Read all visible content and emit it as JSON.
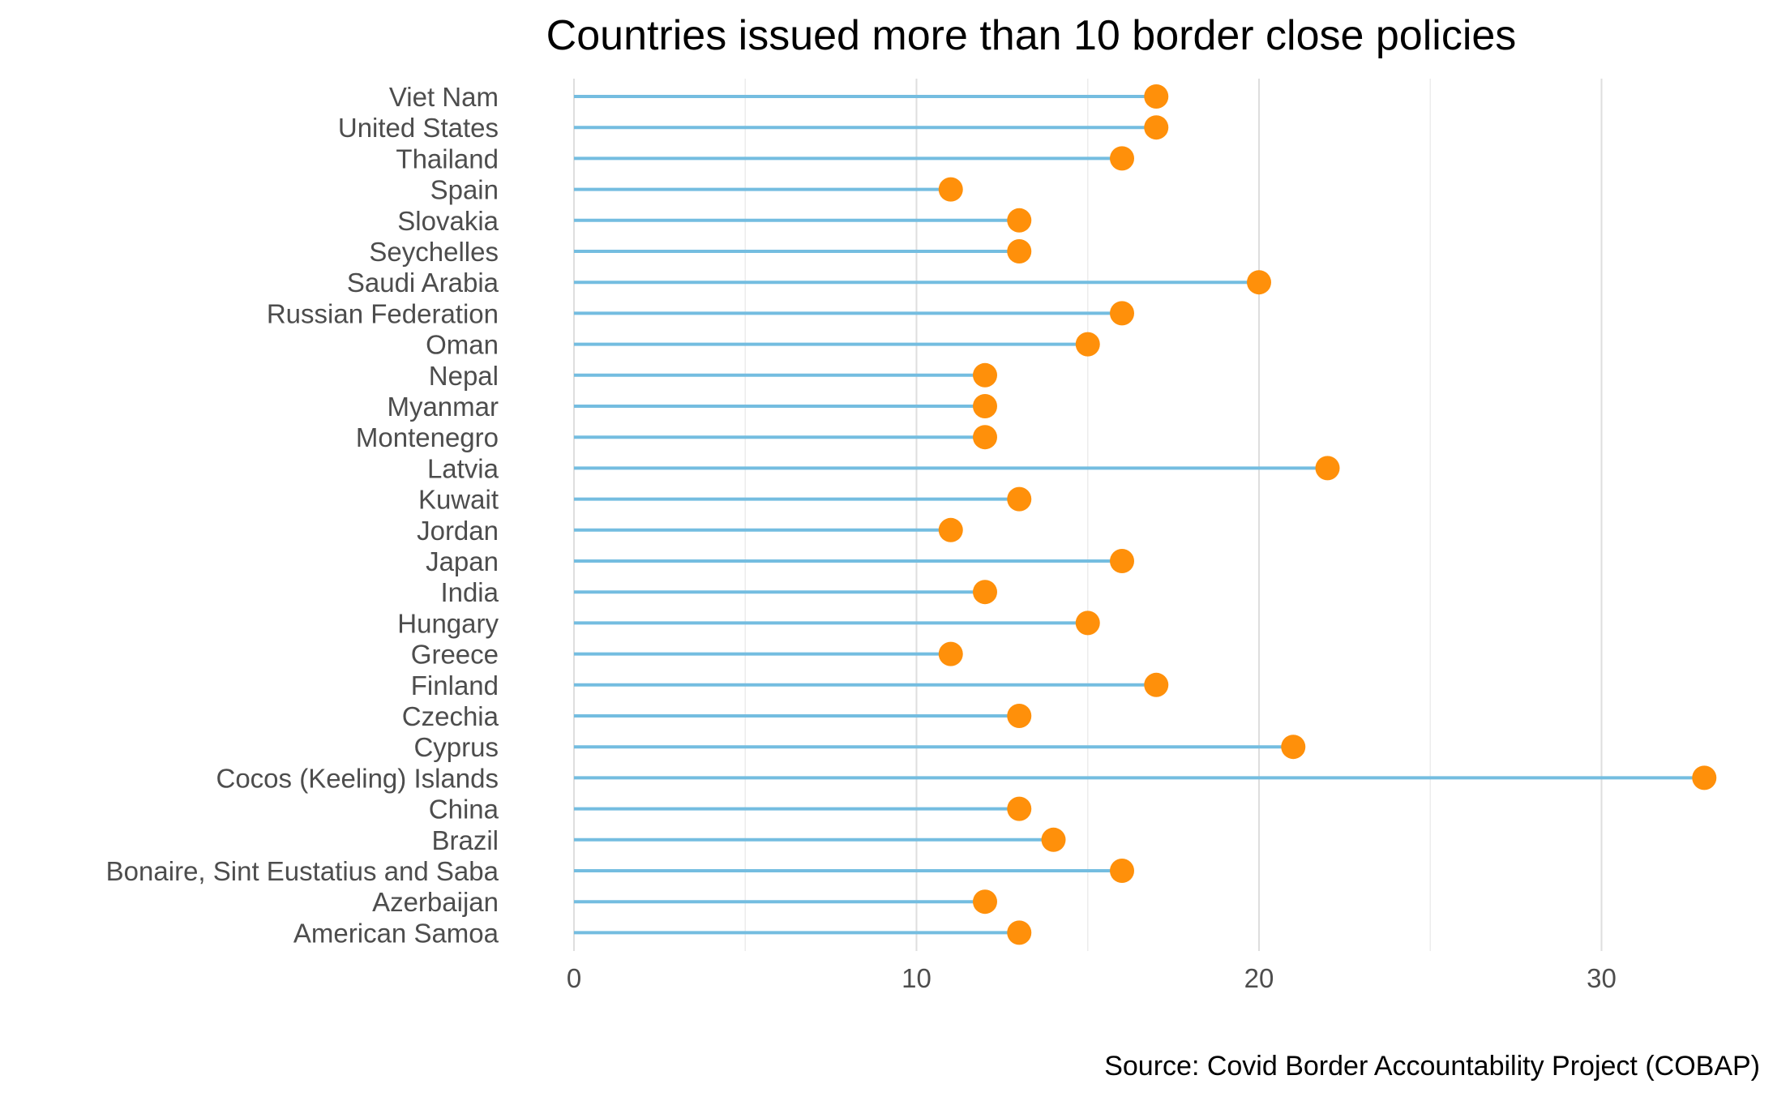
{
  "chart_data": {
    "type": "lollipop",
    "title": "Countries issued more than 10 border close policies",
    "caption": "Source: Covid Border Accountability Project (COBAP)",
    "xlabel": "",
    "ylabel": "",
    "xlim": [
      0,
      33
    ],
    "xticks": [
      0,
      10,
      20,
      30
    ],
    "minor_xticks": [
      5,
      15,
      25
    ],
    "grid": true,
    "stem_color": "#74bde0",
    "dot_color": "#ff900a",
    "categories": [
      "Viet Nam",
      "United States",
      "Thailand",
      "Spain",
      "Slovakia",
      "Seychelles",
      "Saudi Arabia",
      "Russian Federation",
      "Oman",
      "Nepal",
      "Myanmar",
      "Montenegro",
      "Latvia",
      "Kuwait",
      "Jordan",
      "Japan",
      "India",
      "Hungary",
      "Greece",
      "Finland",
      "Czechia",
      "Cyprus",
      "Cocos (Keeling) Islands",
      "China",
      "Brazil",
      "Bonaire, Sint Eustatius and Saba",
      "Azerbaijan",
      "American Samoa"
    ],
    "values": [
      17,
      17,
      16,
      11,
      13,
      13,
      20,
      16,
      15,
      12,
      12,
      12,
      22,
      13,
      11,
      16,
      12,
      15,
      11,
      17,
      13,
      21,
      33,
      13,
      14,
      16,
      12,
      13
    ]
  }
}
